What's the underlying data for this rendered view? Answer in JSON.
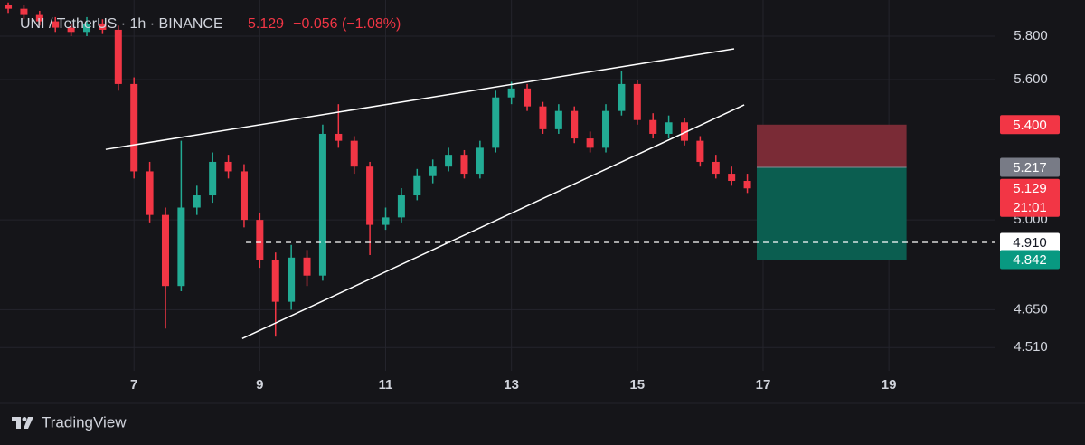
{
  "chart_data": {
    "type": "candlestick",
    "title": "UNI / TetherUS · 1h · BINANCE",
    "last_price": "5.129",
    "change": "−0.056 (−1.08%)",
    "brand": "TradingView",
    "log_scale": true,
    "grid": true,
    "up_color": "#22ab94",
    "down_color": "#f23645",
    "xlim": [
      4.87,
      20.68
    ],
    "xticks": [
      7,
      9,
      11,
      13,
      15,
      17,
      19
    ],
    "ylim": [
      4.426,
      5.972
    ],
    "yticks": [
      {
        "value": 5.8,
        "label": "5.800"
      },
      {
        "value": 5.6,
        "label": "5.600"
      },
      {
        "value": 5.0,
        "label": "5.000"
      },
      {
        "value": 4.65,
        "label": "4.650"
      },
      {
        "value": 4.51,
        "label": "4.510"
      }
    ],
    "x": [
      5.0,
      5.25,
      5.5,
      5.75,
      6.0,
      6.25,
      6.5,
      6.75,
      7.0,
      7.25,
      7.5,
      7.75,
      8.0,
      8.25,
      8.5,
      8.75,
      9.0,
      9.25,
      9.5,
      9.75,
      10.0,
      10.25,
      10.5,
      10.75,
      11.0,
      11.25,
      11.5,
      11.75,
      12.0,
      12.25,
      12.5,
      12.75,
      13.0,
      13.25,
      13.5,
      13.75,
      14.0,
      14.25,
      14.5,
      14.75,
      15.0,
      15.25,
      15.5,
      15.75,
      16.0,
      16.25,
      16.5,
      16.75
    ],
    "open": [
      5.95,
      5.93,
      5.9,
      5.87,
      5.84,
      5.82,
      5.86,
      5.83,
      5.58,
      5.2,
      5.02,
      4.74,
      5.05,
      5.1,
      5.24,
      5.2,
      5.0,
      4.84,
      4.68,
      4.85,
      4.78,
      5.36,
      5.33,
      5.22,
      4.98,
      5.01,
      5.1,
      5.18,
      5.22,
      5.27,
      5.19,
      5.3,
      5.52,
      5.56,
      5.48,
      5.38,
      5.46,
      5.34,
      5.3,
      5.46,
      5.58,
      5.42,
      5.36,
      5.41,
      5.33,
      5.24,
      5.19,
      5.16
    ],
    "high": [
      5.96,
      5.95,
      5.92,
      5.89,
      5.86,
      5.89,
      5.88,
      5.85,
      5.61,
      5.24,
      5.05,
      5.33,
      5.14,
      5.28,
      5.27,
      5.23,
      5.03,
      4.87,
      4.9,
      4.88,
      5.4,
      5.49,
      5.35,
      5.24,
      5.05,
      5.13,
      5.21,
      5.25,
      5.3,
      5.29,
      5.33,
      5.55,
      5.59,
      5.58,
      5.5,
      5.49,
      5.48,
      5.37,
      5.49,
      5.64,
      5.6,
      5.45,
      5.44,
      5.43,
      5.35,
      5.27,
      5.22,
      5.19
    ],
    "low": [
      5.91,
      5.88,
      5.85,
      5.82,
      5.8,
      5.8,
      5.81,
      5.55,
      5.17,
      4.99,
      4.58,
      4.72,
      5.02,
      5.07,
      5.17,
      4.97,
      4.81,
      4.55,
      4.65,
      4.74,
      4.76,
      5.3,
      5.19,
      4.86,
      4.96,
      4.99,
      5.08,
      5.15,
      5.2,
      5.17,
      5.17,
      5.28,
      5.49,
      5.46,
      5.36,
      5.36,
      5.32,
      5.28,
      5.28,
      5.44,
      5.4,
      5.34,
      5.34,
      5.31,
      5.22,
      5.17,
      5.14,
      5.11
    ],
    "close": [
      5.93,
      5.9,
      5.87,
      5.84,
      5.82,
      5.86,
      5.83,
      5.58,
      5.2,
      5.02,
      4.74,
      5.05,
      5.1,
      5.24,
      5.2,
      5.0,
      4.84,
      4.68,
      4.85,
      4.78,
      5.36,
      5.33,
      5.22,
      4.98,
      5.01,
      5.1,
      5.18,
      5.22,
      5.27,
      5.19,
      5.3,
      5.52,
      5.56,
      5.48,
      5.38,
      5.46,
      5.34,
      5.3,
      5.46,
      5.58,
      5.42,
      5.36,
      5.41,
      5.33,
      5.24,
      5.19,
      5.16,
      5.129
    ],
    "trend_lines": [
      {
        "x": [
          6.55,
          16.54
        ],
        "y": [
          5.293,
          5.741
        ],
        "color": "#ffffff"
      },
      {
        "x": [
          8.72,
          16.7
        ],
        "y": [
          4.543,
          5.487
        ],
        "color": "#ffffff"
      }
    ],
    "position": {
      "x": [
        16.9,
        19.28
      ],
      "stop": 5.4,
      "entry": 5.217,
      "target": 4.842,
      "stop_color": "#7a2b36",
      "target_color": "#0b5e50"
    },
    "horizontal_line": {
      "value": 4.91,
      "x_start": 8.78,
      "color": "#ffffff"
    },
    "price_labels": [
      {
        "value": 5.4,
        "label": "5.400",
        "color": "#f23645",
        "text_color": "#ffffff"
      },
      {
        "value": 5.217,
        "label": "5.217",
        "color": "#787b86",
        "text_color": "#ffffff"
      },
      {
        "value": 5.129,
        "label": "5.129",
        "sub": "21:01",
        "color": "#f23645",
        "text_color": "#ffffff"
      },
      {
        "value": 4.91,
        "label": "4.910",
        "color": "#ffffff",
        "text_color": "#131722"
      },
      {
        "value": 4.842,
        "label": "4.842",
        "color": "#089981",
        "text_color": "#ffffff"
      }
    ]
  }
}
